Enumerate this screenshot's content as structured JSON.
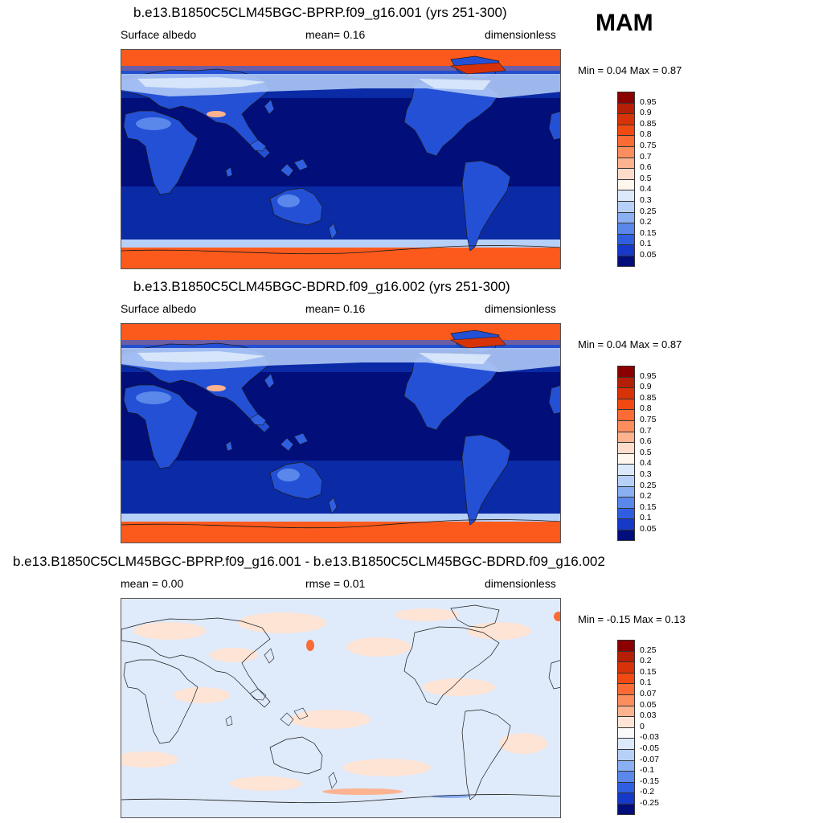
{
  "season": "MAM",
  "panels": [
    {
      "title": "b.e13.B1850C5CLM45BGC-BPRP.f09_g16.001 (yrs 251-300)",
      "left_label": "Surface albedo",
      "mid_label": "mean=   0.16",
      "right_label": "dimensionless",
      "minmax": "Min =   0.04 Max =   0.87",
      "type": "albedo"
    },
    {
      "title": "b.e13.B1850C5CLM45BGC-BDRD.f09_g16.002 (yrs 251-300)",
      "left_label": "Surface albedo",
      "mid_label": "mean=   0.16",
      "right_label": "dimensionless",
      "minmax": "Min =   0.04 Max =   0.87",
      "type": "albedo"
    },
    {
      "title": "b.e13.B1850C5CLM45BGC-BPRP.f09_g16.001 - b.e13.B1850C5CLM45BGC-BDRD.f09_g16.002",
      "left_label": "mean =   0.00",
      "mid_label": "rmse =   0.01",
      "right_label": "dimensionless",
      "minmax": "Min =  -0.15 Max =   0.13",
      "type": "diff"
    }
  ],
  "colorbar_albedo": {
    "labels": [
      "0.95",
      "0.9",
      "0.85",
      "0.8",
      "0.75",
      "0.7",
      "0.6",
      "0.5",
      "0.4",
      "0.3",
      "0.25",
      "0.2",
      "0.15",
      "0.1",
      "0.05"
    ],
    "colors": [
      "#8b0000",
      "#b51f05",
      "#d83308",
      "#f04a12",
      "#fa6b35",
      "#fc8e5e",
      "#fdb38f",
      "#fddccb",
      "#fff6ee",
      "#dce9fb",
      "#b7d0f8",
      "#8bb0f2",
      "#5a87ea",
      "#2f5fe0",
      "#1639c8",
      "#020e7a"
    ]
  },
  "colorbar_diff": {
    "labels": [
      "0.25",
      "0.2",
      "0.15",
      "0.1",
      "0.07",
      "0.05",
      "0.03",
      "0",
      "-0.03",
      "-0.05",
      "-0.07",
      "-0.1",
      "-0.15",
      "-0.2",
      "-0.25"
    ],
    "colors": [
      "#8b0000",
      "#b51f05",
      "#d83308",
      "#f04a12",
      "#fa6b35",
      "#fc8e5e",
      "#fdb38f",
      "#fde4d5",
      "#fafafa",
      "#dce9fb",
      "#b7d0f8",
      "#8bb0f2",
      "#5a87ea",
      "#2f5fe0",
      "#1639c8",
      "#020e7a"
    ]
  }
}
